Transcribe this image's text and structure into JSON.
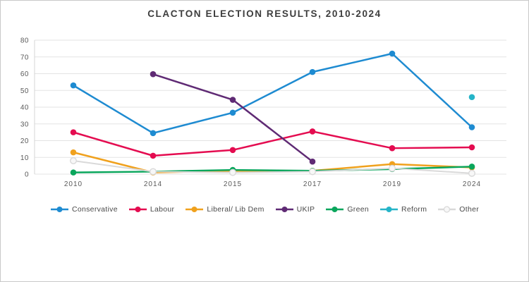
{
  "title": "CLACTON ELECTION RESULTS, 2010-2024",
  "chart_data": {
    "type": "line",
    "title": "CLACTON ELECTION RESULTS, 2010-2024",
    "xlabel": "",
    "ylabel": "",
    "categories": [
      "2010",
      "2014",
      "2015",
      "2017",
      "2019",
      "2024"
    ],
    "ylim": [
      0,
      80
    ],
    "yticks": [
      0,
      10,
      20,
      30,
      40,
      50,
      60,
      70,
      80
    ],
    "grid": true,
    "legend_position": "bottom",
    "series": [
      {
        "name": "Conservative",
        "color": "#1e8bd1",
        "values": [
          53,
          24.5,
          36.7,
          61,
          72,
          28
        ]
      },
      {
        "name": "Labour",
        "color": "#e40c50",
        "values": [
          25,
          11,
          14.4,
          25.5,
          15.5,
          16
        ]
      },
      {
        "name": "Liberal/ Lib Dem",
        "color": "#f0a11d",
        "values": [
          13,
          1,
          2,
          2,
          6,
          4
        ]
      },
      {
        "name": "UKIP",
        "color": "#5f2a74",
        "values": [
          null,
          59.7,
          44.4,
          7.5,
          null,
          null
        ]
      },
      {
        "name": "Green",
        "color": "#0aa65c",
        "values": [
          1,
          1.5,
          2.5,
          2,
          3,
          4.5
        ]
      },
      {
        "name": "Reform",
        "color": "#25b4c8",
        "values": [
          null,
          null,
          null,
          null,
          null,
          46
        ]
      },
      {
        "name": "Other",
        "color": "#d9d9d9",
        "marker_fill": "#f7f7f7",
        "values": [
          8,
          1.5,
          1,
          1.5,
          3.5,
          0.5
        ]
      }
    ]
  }
}
